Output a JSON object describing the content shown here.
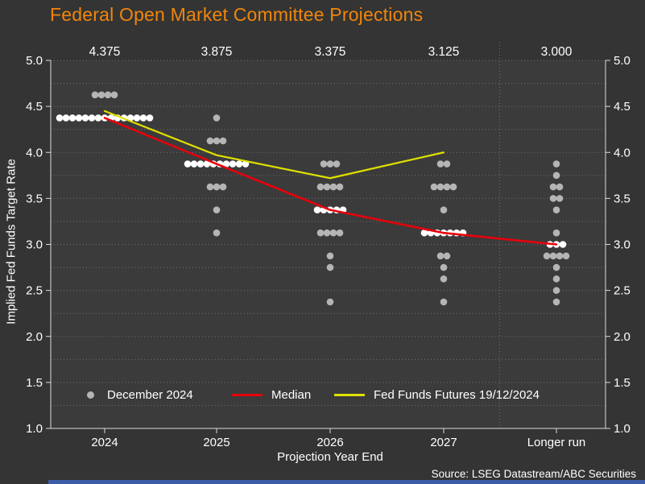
{
  "title": "Federal Open Market Committee Projections",
  "source": "Source: LSEG Datastream/ABC Securities",
  "axis": {
    "y_label": "Implied Fed Funds Target Rate",
    "x_label": "Projection Year End",
    "y_tick_labels": [
      "5.0",
      "4.5",
      "4.0",
      "3.5",
      "3.0",
      "2.5",
      "2.0",
      "1.5",
      "1.0"
    ],
    "y_tick_rates": [
      5.0,
      4.5,
      4.0,
      3.5,
      3.0,
      2.5,
      2.0,
      1.5,
      1.0
    ]
  },
  "legend": [
    {
      "label": "December 2024",
      "swatch": "dot",
      "color": "#b5b5b5"
    },
    {
      "label": "Median",
      "swatch": "line",
      "color": "#e8000b"
    },
    {
      "label": "Fed Funds Futures 19/12/2024",
      "swatch": "line",
      "color": "#e0e000"
    }
  ],
  "colors": {
    "background": "#343434",
    "plot_background": "#3b3b3b",
    "grid": "#9b9b9b",
    "axis_line": "#dcdcdc",
    "text": "#ffffff",
    "title": "#f0860c",
    "dot_gray": "#b5b5b5",
    "dot_median": "#ffffff",
    "median_line": "#e8000b",
    "futures_line": "#e0e000",
    "bottom_bar": "#3c5ca8"
  },
  "chart_data": {
    "type": "scatter",
    "title": "Federal Open Market Committee Projections",
    "xlabel": "Projection Year End",
    "ylabel": "Implied Fed Funds Target Rate",
    "ylim": [
      1.0,
      5.0
    ],
    "grid": "dotted every 0.25, vertical dotted separator before Longer run",
    "legend_position": "inside bottom",
    "categories": [
      "2024",
      "2025",
      "2026",
      "2027",
      "Longer run"
    ],
    "median_labels_top": [
      "4.375",
      "3.875",
      "3.375",
      "3.125",
      "3.000"
    ],
    "dots_series_name": "December 2024",
    "dots": [
      {
        "category": "2024",
        "groups": [
          {
            "rate": 4.625,
            "count": 4
          },
          {
            "rate": 4.375,
            "count": 15,
            "median": true
          }
        ]
      },
      {
        "category": "2025",
        "groups": [
          {
            "rate": 4.375,
            "count": 1
          },
          {
            "rate": 4.125,
            "count": 3
          },
          {
            "rate": 3.875,
            "count": 10,
            "median": true
          },
          {
            "rate": 3.625,
            "count": 3
          },
          {
            "rate": 3.375,
            "count": 1
          },
          {
            "rate": 3.125,
            "count": 1
          }
        ]
      },
      {
        "category": "2026",
        "groups": [
          {
            "rate": 3.875,
            "count": 3
          },
          {
            "rate": 3.625,
            "count": 4
          },
          {
            "rate": 3.375,
            "count": 5,
            "median": true
          },
          {
            "rate": 3.125,
            "count": 4
          },
          {
            "rate": 2.875,
            "count": 1
          },
          {
            "rate": 2.75,
            "count": 1
          },
          {
            "rate": 2.375,
            "count": 1
          }
        ]
      },
      {
        "category": "2027",
        "groups": [
          {
            "rate": 3.875,
            "count": 2
          },
          {
            "rate": 3.625,
            "count": 4
          },
          {
            "rate": 3.375,
            "count": 1
          },
          {
            "rate": 3.125,
            "count": 7,
            "median": true
          },
          {
            "rate": 2.875,
            "count": 2
          },
          {
            "rate": 2.75,
            "count": 1
          },
          {
            "rate": 2.625,
            "count": 1
          },
          {
            "rate": 2.375,
            "count": 1
          }
        ]
      },
      {
        "category": "Longer run",
        "groups": [
          {
            "rate": 3.875,
            "count": 1
          },
          {
            "rate": 3.75,
            "count": 1
          },
          {
            "rate": 3.625,
            "count": 2
          },
          {
            "rate": 3.5,
            "count": 2
          },
          {
            "rate": 3.375,
            "count": 1
          },
          {
            "rate": 3.125,
            "count": 1
          },
          {
            "rate": 3.0,
            "count": 3,
            "median": true
          },
          {
            "rate": 2.875,
            "count": 4
          },
          {
            "rate": 2.75,
            "count": 1
          },
          {
            "rate": 2.625,
            "count": 1
          },
          {
            "rate": 2.5,
            "count": 1
          },
          {
            "rate": 2.375,
            "count": 1
          }
        ]
      }
    ],
    "series": [
      {
        "name": "Median",
        "type": "line",
        "color": "#e8000b",
        "x": [
          "2024",
          "2025",
          "2026",
          "2027",
          "Longer run"
        ],
        "values": [
          4.375,
          3.875,
          3.375,
          3.125,
          3.0
        ]
      },
      {
        "name": "Fed Funds Futures 19/12/2024",
        "type": "line",
        "color": "#e0e000",
        "x": [
          "2024",
          "2025",
          "2026",
          "2027"
        ],
        "values": [
          4.45,
          3.97,
          3.72,
          4.0
        ]
      }
    ]
  }
}
